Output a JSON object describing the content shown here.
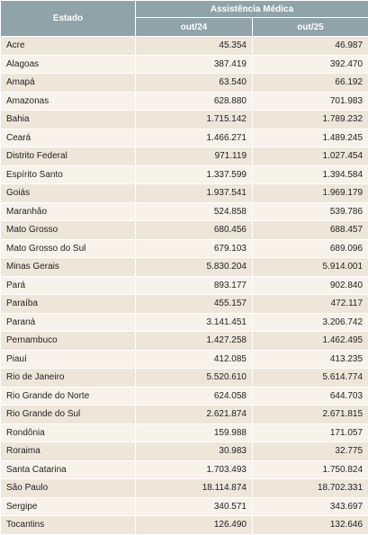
{
  "table": {
    "header": {
      "estado": "Estado",
      "group": "Assistência Médica",
      "columns": [
        "out/24",
        "out/25"
      ]
    },
    "rows": [
      [
        "Acre",
        "45.354",
        "46.987"
      ],
      [
        "Alagoas",
        "387.419",
        "392.470"
      ],
      [
        "Amapá",
        "63.540",
        "66.192"
      ],
      [
        "Amazonas",
        "628.880",
        "701.983"
      ],
      [
        "Bahia",
        "1.715.142",
        "1.789.232"
      ],
      [
        "Ceará",
        "1.466.271",
        "1.489.245"
      ],
      [
        "Distrito Federal",
        "971.119",
        "1.027.454"
      ],
      [
        "Espírito Santo",
        "1.337.599",
        "1.394.584"
      ],
      [
        "Goiás",
        "1.937.541",
        "1.969.179"
      ],
      [
        "Maranhão",
        "524.858",
        "539.786"
      ],
      [
        "Mato Grosso",
        "680.456",
        "688.457"
      ],
      [
        "Mato Grosso do Sul",
        "679.103",
        "689.096"
      ],
      [
        "Minas Gerais",
        "5.830.204",
        "5.914.001"
      ],
      [
        "Pará",
        "893.177",
        "902.840"
      ],
      [
        "Paraíba",
        "455.157",
        "472.117"
      ],
      [
        "Paraná",
        "3.141.451",
        "3.206.742"
      ],
      [
        "Pernambuco",
        "1.427.258",
        "1.462.495"
      ],
      [
        "Piauí",
        "412.085",
        "413.235"
      ],
      [
        "Rio de Janeiro",
        "5.520.610",
        "5.614.774"
      ],
      [
        "Rio Grande do Norte",
        "624.058",
        "644.703"
      ],
      [
        "Rio Grande do Sul",
        "2.621.874",
        "2.671.815"
      ],
      [
        "Rondônia",
        "159.988",
        "171.057"
      ],
      [
        "Roraima",
        "30.983",
        "32.775"
      ],
      [
        "Santa Catarina",
        "1.703.493",
        "1.750.824"
      ],
      [
        "São Paulo",
        "18.114.874",
        "18.702.331"
      ],
      [
        "Sergipe",
        "340.571",
        "343.697"
      ],
      [
        "Tocantins",
        "126.490",
        "132.646"
      ]
    ]
  }
}
